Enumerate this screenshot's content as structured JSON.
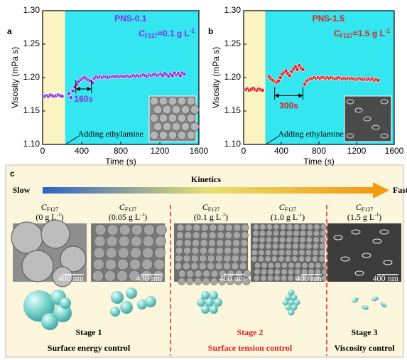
{
  "chart_data": [
    {
      "type": "scatter",
      "panel_label": "a",
      "title": "PNS-0.1",
      "title_color": "#8a2be2",
      "concentration": {
        "symbol": "C",
        "subscript": "F127",
        "text": "=0.1 g L",
        "superscript": "-1"
      },
      "x_label": "Time (s)",
      "y_label": "Visosity (mPa s)",
      "xlim": [
        0,
        1600
      ],
      "xticks": [
        0,
        400,
        800,
        1200,
        1600
      ],
      "ylim": [
        1.1,
        1.3
      ],
      "yticks": [
        {
          "value": 1.1,
          "label": "1.10"
        },
        1.15,
        {
          "value": 1.2,
          "label": "1.20"
        },
        1.25,
        {
          "value": 1.3,
          "label": "1.30"
        }
      ],
      "shaded_regions": [
        {
          "x": [
            0,
            230
          ],
          "color": "#fbf5c4"
        },
        {
          "x": [
            230,
            1600
          ],
          "color": "#33e6f0"
        }
      ],
      "annotation": {
        "text": "Adding ethylamine",
        "x": 230
      },
      "interval": {
        "label": "160s",
        "x": [
          340,
          500
        ],
        "y": 1.183
      },
      "color": "#8a2be2",
      "x": [
        20,
        40,
        60,
        80,
        100,
        120,
        140,
        160,
        180,
        200,
        270,
        290,
        310,
        330,
        350,
        370,
        390,
        410,
        430,
        450,
        470,
        490,
        510,
        530,
        550,
        570,
        590,
        610,
        630,
        650,
        670,
        690,
        710,
        730,
        750,
        770,
        790,
        810,
        830,
        850,
        870,
        890,
        910,
        930,
        950,
        970,
        990,
        1010,
        1030,
        1050,
        1070,
        1090,
        1110,
        1130,
        1150,
        1170,
        1190,
        1210,
        1230,
        1250,
        1270,
        1290,
        1310,
        1330,
        1350,
        1370,
        1390,
        1410,
        1430,
        1450
      ],
      "values": [
        1.172,
        1.173,
        1.172,
        1.174,
        1.173,
        1.172,
        1.173,
        1.174,
        1.173,
        1.172,
        1.176,
        1.17,
        1.18,
        1.186,
        1.19,
        1.194,
        1.197,
        1.199,
        1.2,
        1.198,
        1.196,
        1.195,
        1.192,
        1.199,
        1.201,
        1.2,
        1.201,
        1.2,
        1.201,
        1.201,
        1.2,
        1.201,
        1.201,
        1.202,
        1.201,
        1.202,
        1.201,
        1.202,
        1.201,
        1.202,
        1.202,
        1.201,
        1.202,
        1.203,
        1.202,
        1.203,
        1.202,
        1.203,
        1.204,
        1.203,
        1.202,
        1.204,
        1.203,
        1.204,
        1.205,
        1.203,
        1.204,
        1.205,
        1.203,
        1.206,
        1.204,
        1.202,
        1.205,
        1.203,
        1.207,
        1.204,
        1.206,
        1.203,
        1.207,
        1.205
      ]
    },
    {
      "type": "scatter",
      "panel_label": "b",
      "title": "PNS-1.5",
      "title_color": "#e41e1e",
      "concentration": {
        "symbol": "C",
        "subscript": "F127",
        "text": "=1.5 g L",
        "superscript": "-1"
      },
      "x_label": "Time (s)",
      "y_label": "Visosity (mPa s)",
      "xlim": [
        0,
        1600
      ],
      "xticks": [
        0,
        400,
        800,
        1200,
        1600
      ],
      "ylim": [
        1.1,
        1.3
      ],
      "yticks": [
        {
          "value": 1.1,
          "label": "1.10"
        },
        1.15,
        {
          "value": 1.2,
          "label": "1.20"
        },
        1.25,
        {
          "value": 1.3,
          "label": "1.30"
        }
      ],
      "shaded_regions": [
        {
          "x": [
            0,
            230
          ],
          "color": "#fbf5c4"
        },
        {
          "x": [
            230,
            1600
          ],
          "color": "#33e6f0"
        }
      ],
      "annotation": {
        "text": "Adding ethylamine",
        "x": 230
      },
      "interval": {
        "label": "300s",
        "x": [
          330,
          630
        ],
        "y": 1.173
      },
      "color": "#e41e1e",
      "x": [
        20,
        40,
        60,
        80,
        100,
        120,
        140,
        160,
        180,
        200,
        270,
        290,
        310,
        330,
        350,
        370,
        390,
        410,
        430,
        450,
        470,
        490,
        510,
        530,
        550,
        570,
        590,
        610,
        630,
        650,
        670,
        690,
        710,
        730,
        750,
        770,
        790,
        810,
        830,
        850,
        870,
        890,
        910,
        930,
        950,
        970,
        990,
        1010,
        1030,
        1050,
        1070,
        1090,
        1110,
        1130,
        1150,
        1170,
        1190,
        1210,
        1230,
        1250,
        1270,
        1290,
        1310,
        1330,
        1350,
        1370,
        1390,
        1410,
        1430
      ],
      "values": [
        1.182,
        1.183,
        1.181,
        1.182,
        1.184,
        1.182,
        1.181,
        1.183,
        1.182,
        1.181,
        1.201,
        1.198,
        1.196,
        1.194,
        1.193,
        1.195,
        1.2,
        1.205,
        1.208,
        1.21,
        1.206,
        1.203,
        1.209,
        1.213,
        1.216,
        1.212,
        1.218,
        1.214,
        1.212,
        1.19,
        1.195,
        1.197,
        1.198,
        1.199,
        1.2,
        1.199,
        1.2,
        1.199,
        1.2,
        1.2,
        1.199,
        1.2,
        1.199,
        1.2,
        1.199,
        1.198,
        1.199,
        1.2,
        1.199,
        1.198,
        1.199,
        1.198,
        1.199,
        1.198,
        1.199,
        1.198,
        1.197,
        1.198,
        1.199,
        1.198,
        1.197,
        1.198,
        1.197,
        1.198,
        1.197,
        1.198,
        1.196,
        1.197,
        1.196
      ]
    }
  ],
  "panel_c": {
    "label": "c",
    "heading": "Kinetics",
    "slow": "Slow",
    "fast": "Fast",
    "columns": [
      {
        "symbol": "C",
        "subscript": "F127",
        "value": "(0 g L",
        "superscript": "-1",
        "close": ")",
        "scale_bar": "400 nm"
      },
      {
        "symbol": "C",
        "subscript": "F127",
        "value": "(0.05 g L",
        "superscript": "-1",
        "close": ")",
        "scale_bar": "400 nm"
      },
      {
        "symbol": "C",
        "subscript": "F127",
        "value": "(0.1 g L",
        "superscript": "-1",
        "close": ")",
        "scale_bar": "400 nm"
      },
      {
        "symbol": "C",
        "subscript": "F127",
        "value": "(1.0 g L",
        "superscript": "-1",
        "close": ")",
        "scale_bar": "400 nm"
      },
      {
        "symbol": "C",
        "subscript": "F127",
        "value": "(1.5 g L",
        "superscript": "-1",
        "close": ")",
        "scale_bar": "400 nm"
      }
    ],
    "stages": [
      {
        "name": "Stage 1",
        "description": "Surface energy control",
        "color": "#000000"
      },
      {
        "name": "Stage 2",
        "description": "Surface tension control",
        "color": "#e41e1e"
      },
      {
        "name": "Stage 3",
        "description": "Viscosity control",
        "color": "#000000"
      }
    ]
  }
}
